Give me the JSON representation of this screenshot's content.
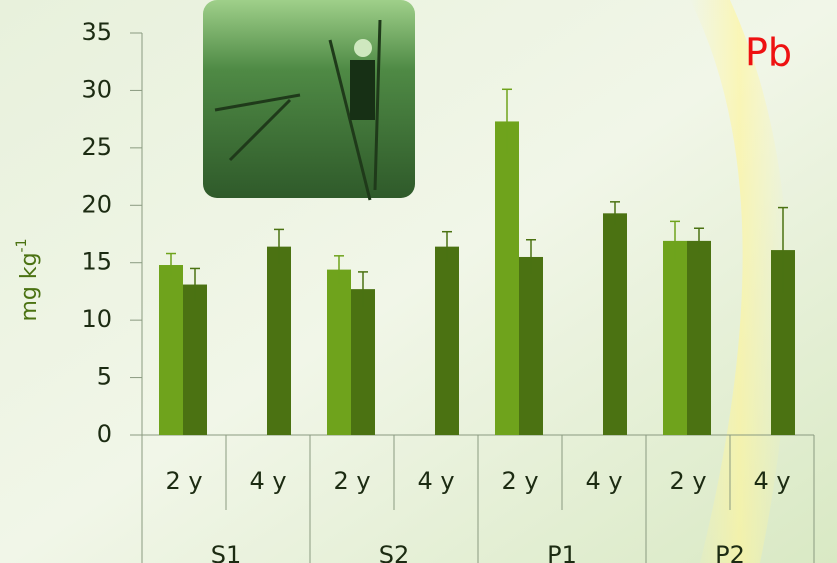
{
  "chart_data": {
    "type": "bar",
    "title": "Pb",
    "ylabel": {
      "text": "mg kg",
      "superscript": "-1"
    },
    "categories": [
      "2 y",
      "4 y",
      "2 y",
      "4 y",
      "2 y",
      "4 y",
      "2 y",
      "4 y"
    ],
    "category_groups": [
      "S1",
      "S2",
      "P1",
      "P2"
    ],
    "series": [
      {
        "color": "#6fa31c",
        "values": [
          14.8,
          null,
          14.4,
          null,
          27.3,
          null,
          16.9,
          null
        ],
        "errors": [
          1.0,
          null,
          1.2,
          null,
          2.8,
          null,
          1.7,
          null
        ]
      },
      {
        "color": "#4b7212",
        "values": [
          13.1,
          16.4,
          12.7,
          16.4,
          15.5,
          19.3,
          16.9,
          16.1
        ],
        "errors": [
          1.4,
          1.5,
          1.5,
          1.3,
          1.5,
          1.0,
          1.1,
          3.7
        ]
      }
    ],
    "ylim": [
      0,
      35
    ],
    "yticks": [
      0,
      5,
      10,
      15,
      20,
      25,
      30,
      35
    ]
  }
}
